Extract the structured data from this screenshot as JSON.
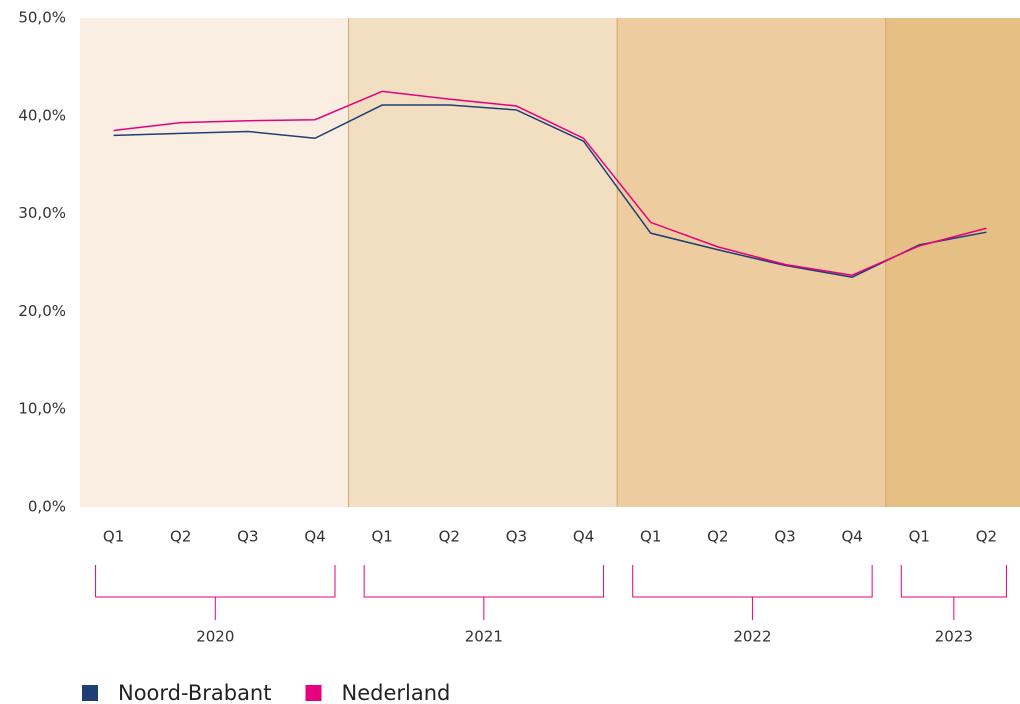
{
  "chart_data": {
    "type": "line",
    "categories": [
      "Q1",
      "Q2",
      "Q3",
      "Q4",
      "Q1",
      "Q2",
      "Q3",
      "Q4",
      "Q1",
      "Q2",
      "Q3",
      "Q4",
      "Q1",
      "Q2"
    ],
    "years": [
      "2020",
      "2021",
      "2022",
      "2023"
    ],
    "band_colors": [
      "#faeee2",
      "#f2dfc2",
      "#edcd9f",
      "#e6bf85"
    ],
    "series": [
      {
        "name": "Noord-Brabant",
        "color": "#1d3f73",
        "values": [
          38.0,
          38.2,
          38.4,
          37.7,
          41.1,
          41.1,
          40.6,
          37.4,
          28.0,
          26.3,
          24.7,
          23.5,
          26.8,
          28.1
        ]
      },
      {
        "name": "Nederland",
        "color": "#e6007e",
        "values": [
          38.5,
          39.3,
          39.5,
          39.6,
          42.5,
          41.7,
          41.0,
          37.7,
          29.1,
          26.6,
          24.8,
          23.7,
          26.7,
          28.5
        ]
      }
    ],
    "ylim": [
      0,
      50
    ],
    "yticks": [
      {
        "value": 0,
        "label": "0,0%"
      },
      {
        "value": 10,
        "label": "10,0%"
      },
      {
        "value": 20,
        "label": "20,0%"
      },
      {
        "value": 30,
        "label": "30,0%"
      },
      {
        "value": 40,
        "label": "40,0%"
      },
      {
        "value": 50,
        "label": "50,0%"
      }
    ]
  }
}
